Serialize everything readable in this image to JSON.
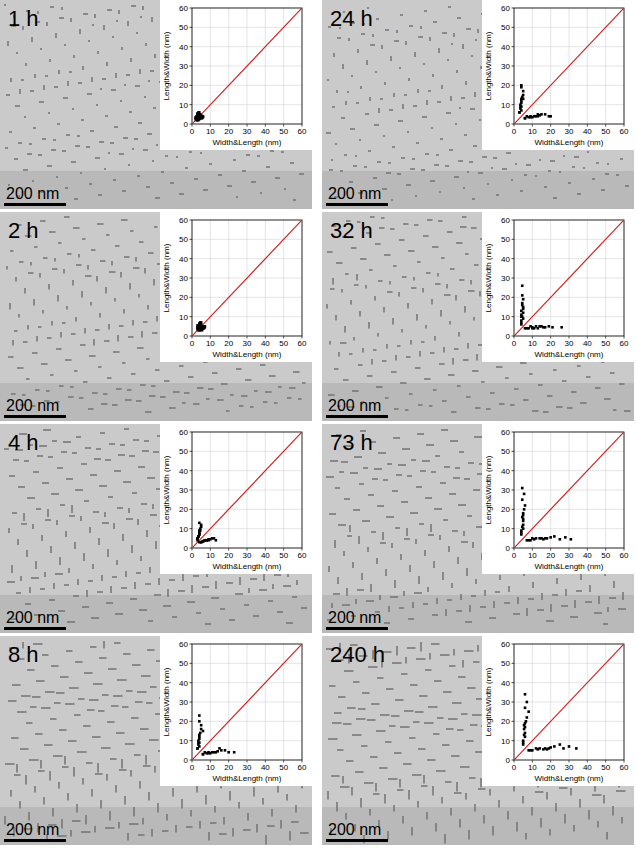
{
  "chart_data": [
    {
      "type": "scatter",
      "title": "1 h",
      "annotation": "200 nm",
      "x_label": "Width&Length (nm)",
      "y_label": "Length&Width (nm)",
      "xlim": [
        0,
        60
      ],
      "ylim": [
        0,
        60
      ],
      "xticks": [
        0,
        10,
        20,
        30,
        40,
        50,
        60
      ],
      "yticks": [
        0,
        10,
        20,
        30,
        40,
        50,
        60
      ],
      "grid": true,
      "color": "#000000",
      "marker": "square",
      "x": [
        2,
        2.5,
        3,
        3,
        3.5,
        2,
        4,
        3,
        2.5,
        3.5,
        4,
        3,
        2,
        3,
        4.5,
        3
      ],
      "values": [
        3,
        4,
        5,
        3.5,
        6,
        2.5,
        5,
        4,
        3,
        4.5,
        6,
        5.5,
        3.5,
        4,
        5,
        3
      ]
    },
    {
      "type": "scatter",
      "title": "24 h",
      "annotation": "200 nm",
      "x_label": "Width&Length (nm)",
      "y_label": "Length&Width (nm)",
      "xlim": [
        0,
        60
      ],
      "ylim": [
        0,
        60
      ],
      "xticks": [
        0,
        10,
        20,
        30,
        40,
        50,
        60
      ],
      "yticks": [
        0,
        10,
        20,
        30,
        40,
        50,
        60
      ],
      "grid": true,
      "color": "#000000",
      "marker": "square",
      "x": [
        3,
        4,
        4,
        3.5,
        5,
        4,
        4.5,
        4,
        3.5,
        5,
        4,
        3,
        4,
        5,
        3.5,
        4
      ],
      "values": [
        6,
        9,
        12,
        8,
        15,
        7,
        14,
        19,
        10,
        17,
        20,
        6,
        11,
        13,
        9,
        13
      ]
    },
    {
      "type": "scatter",
      "title": "2 h",
      "annotation": "200 nm",
      "x_label": "Width&Length (nm)",
      "y_label": "Length&Width (nm)",
      "xlim": [
        0,
        60
      ],
      "ylim": [
        0,
        60
      ],
      "xticks": [
        0,
        10,
        20,
        30,
        40,
        50,
        60
      ],
      "yticks": [
        0,
        10,
        20,
        30,
        40,
        50,
        60
      ],
      "grid": true,
      "color": "#000000",
      "marker": "square",
      "x": [
        3,
        3.5,
        4,
        3,
        4.5,
        3,
        5,
        4,
        3.5,
        4,
        5,
        3,
        4,
        4.5,
        3.5,
        4
      ],
      "values": [
        4,
        5,
        6,
        4.5,
        7,
        3.5,
        6,
        5,
        4,
        6.5,
        7,
        5.5,
        3.5,
        5,
        4.5,
        6
      ]
    },
    {
      "type": "scatter",
      "title": "32 h",
      "annotation": "200 nm",
      "x_label": "Width&Length (nm)",
      "y_label": "Length&Width (nm)",
      "xlim": [
        0,
        60
      ],
      "ylim": [
        0,
        60
      ],
      "xticks": [
        0,
        10,
        20,
        30,
        40,
        50,
        60
      ],
      "yticks": [
        0,
        10,
        20,
        30,
        40,
        50,
        60
      ],
      "grid": true,
      "color": "#000000",
      "marker": "square",
      "x": [
        4,
        4.5,
        4,
        5,
        4.5,
        4,
        5,
        4.5,
        4,
        5,
        4.5,
        4,
        5,
        4.5,
        4,
        5
      ],
      "values": [
        7,
        10,
        13,
        9,
        16,
        8,
        15,
        21,
        11,
        19,
        26,
        6,
        12,
        17,
        10,
        14
      ]
    },
    {
      "type": "scatter",
      "title": "4 h",
      "annotation": "200 nm",
      "x_label": "Width&Length (nm)",
      "y_label": "Length&Width (nm)",
      "xlim": [
        0,
        60
      ],
      "ylim": [
        0,
        60
      ],
      "xticks": [
        0,
        10,
        20,
        30,
        40,
        50,
        60
      ],
      "yticks": [
        0,
        10,
        20,
        30,
        40,
        50,
        60
      ],
      "grid": true,
      "color": "#000000",
      "marker": "square",
      "x": [
        3,
        4,
        4,
        3.5,
        5,
        3,
        4.5,
        4,
        3.5,
        5,
        4,
        3,
        4,
        4.5,
        3.5,
        4
      ],
      "values": [
        5,
        7,
        9,
        6,
        12,
        4,
        10,
        8,
        6,
        11,
        13,
        5,
        7,
        9,
        6,
        8
      ]
    },
    {
      "type": "scatter",
      "title": "73 h",
      "annotation": "200 nm",
      "x_label": "Width&Length (nm)",
      "y_label": "Length&Width (nm)",
      "xlim": [
        0,
        60
      ],
      "ylim": [
        0,
        60
      ],
      "xticks": [
        0,
        10,
        20,
        30,
        40,
        50,
        60
      ],
      "yticks": [
        0,
        10,
        20,
        30,
        40,
        50,
        60
      ],
      "grid": true,
      "color": "#000000",
      "marker": "square",
      "x": [
        4,
        5,
        4.5,
        5,
        5.5,
        4,
        5,
        4.5,
        5,
        6,
        4.5,
        4,
        5,
        5.5,
        4.5,
        5
      ],
      "values": [
        8,
        12,
        16,
        10,
        20,
        9,
        18,
        25,
        14,
        22,
        31,
        7,
        15,
        28,
        11,
        17
      ]
    },
    {
      "type": "scatter",
      "title": "8 h",
      "annotation": "200 nm",
      "x_label": "Width&Length (nm)",
      "y_label": "Length&Width (nm)",
      "xlim": [
        0,
        60
      ],
      "ylim": [
        0,
        60
      ],
      "xticks": [
        0,
        10,
        20,
        30,
        40,
        50,
        60
      ],
      "yticks": [
        0,
        10,
        20,
        30,
        40,
        50,
        60
      ],
      "grid": true,
      "color": "#000000",
      "marker": "square",
      "x": [
        3,
        4,
        4,
        3.5,
        5,
        4,
        4.5,
        4,
        3.5,
        5,
        4,
        3,
        4,
        6,
        3.5,
        4
      ],
      "values": [
        6,
        9,
        12,
        8,
        16,
        7,
        14,
        20,
        10,
        18,
        23,
        6,
        11,
        15,
        9,
        13
      ]
    },
    {
      "type": "scatter",
      "title": "240 h",
      "annotation": "200 nm",
      "x_label": "Width&Length (nm)",
      "y_label": "Length&Width (nm)",
      "xlim": [
        0,
        60
      ],
      "ylim": [
        0,
        60
      ],
      "xticks": [
        0,
        10,
        20,
        30,
        40,
        50,
        60
      ],
      "yticks": [
        0,
        10,
        20,
        30,
        40,
        50,
        60
      ],
      "grid": true,
      "color": "#000000",
      "marker": "square",
      "x": [
        5,
        6,
        5.5,
        6,
        7,
        5,
        6.5,
        6,
        5.5,
        8,
        6,
        5,
        6,
        7,
        5.5,
        6
      ],
      "values": [
        9,
        14,
        18,
        12,
        22,
        10,
        20,
        27,
        16,
        25,
        34,
        8,
        17,
        30,
        13,
        19
      ]
    }
  ]
}
